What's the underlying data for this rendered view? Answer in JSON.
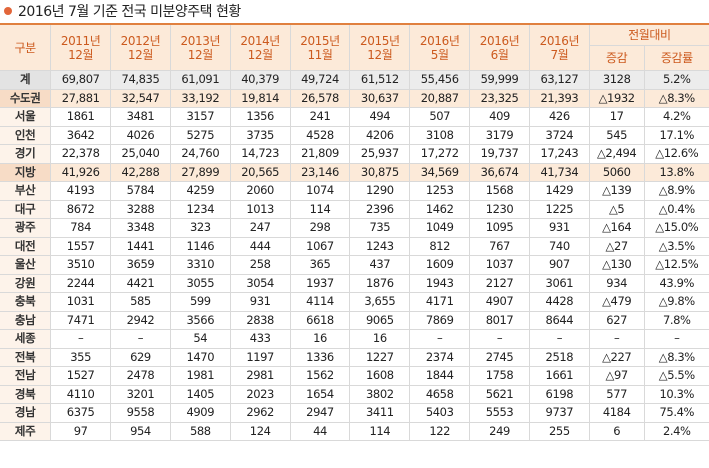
{
  "title": "2016년 7월 기준 전국 미분양주택 현황",
  "header": {
    "region_col": "구분",
    "periods": [
      [
        "2011년",
        "12월"
      ],
      [
        "2012년",
        "12월"
      ],
      [
        "2013년",
        "12월"
      ],
      [
        "2014년",
        "12월"
      ],
      [
        "2015년",
        "11월"
      ],
      [
        "2015년",
        "12월"
      ],
      [
        "2016년",
        "5월"
      ],
      [
        "2016년",
        "6월"
      ],
      [
        "2016년",
        "7월"
      ]
    ],
    "group": "전월대비",
    "sub": [
      "증감",
      "증감률"
    ]
  },
  "rows": [
    {
      "region": "계",
      "style": "sum",
      "values": [
        "69,807",
        "74,835",
        "61,091",
        "40,379",
        "49,724",
        "61,512",
        "55,456",
        "59,999",
        "63,127",
        "3128",
        "5.2%"
      ]
    },
    {
      "region": "수도권",
      "style": "hl",
      "values": [
        "27,881",
        "32,547",
        "33,192",
        "19,814",
        "26,578",
        "30,637",
        "20,887",
        "23,325",
        "21,393",
        "△1932",
        "△8.3%"
      ]
    },
    {
      "region": "서울",
      "style": "",
      "values": [
        "1861",
        "3481",
        "3157",
        "1356",
        "241",
        "494",
        "507",
        "409",
        "426",
        "17",
        "4.2%"
      ]
    },
    {
      "region": "인천",
      "style": "",
      "values": [
        "3642",
        "4026",
        "5275",
        "3735",
        "4528",
        "4206",
        "3108",
        "3179",
        "3724",
        "545",
        "17.1%"
      ]
    },
    {
      "region": "경기",
      "style": "",
      "values": [
        "22,378",
        "25,040",
        "24,760",
        "14,723",
        "21,809",
        "25,937",
        "17,272",
        "19,737",
        "17,243",
        "△2,494",
        "△12.6%"
      ]
    },
    {
      "region": "지방",
      "style": "hl",
      "values": [
        "41,926",
        "42,288",
        "27,899",
        "20,565",
        "23,146",
        "30,875",
        "34,569",
        "36,674",
        "41,734",
        "5060",
        "13.8%"
      ]
    },
    {
      "region": "부산",
      "style": "",
      "values": [
        "4193",
        "5784",
        "4259",
        "2060",
        "1074",
        "1290",
        "1253",
        "1568",
        "1429",
        "△139",
        "△8.9%"
      ]
    },
    {
      "region": "대구",
      "style": "",
      "values": [
        "8672",
        "3288",
        "1234",
        "1013",
        "114",
        "2396",
        "1462",
        "1230",
        "1225",
        "△5",
        "△0.4%"
      ]
    },
    {
      "region": "광주",
      "style": "",
      "values": [
        "784",
        "3348",
        "323",
        "247",
        "298",
        "735",
        "1049",
        "1095",
        "931",
        "△164",
        "△15.0%"
      ]
    },
    {
      "region": "대전",
      "style": "",
      "values": [
        "1557",
        "1441",
        "1146",
        "444",
        "1067",
        "1243",
        "812",
        "767",
        "740",
        "△27",
        "△3.5%"
      ]
    },
    {
      "region": "울산",
      "style": "",
      "values": [
        "3510",
        "3659",
        "3310",
        "258",
        "365",
        "437",
        "1609",
        "1037",
        "907",
        "△130",
        "△12.5%"
      ]
    },
    {
      "region": "강원",
      "style": "",
      "values": [
        "2244",
        "4421",
        "3055",
        "3054",
        "1937",
        "1876",
        "1943",
        "2127",
        "3061",
        "934",
        "43.9%"
      ]
    },
    {
      "region": "충북",
      "style": "",
      "values": [
        "1031",
        "585",
        "599",
        "931",
        "4114",
        "3,655",
        "4171",
        "4907",
        "4428",
        "△479",
        "△9.8%"
      ]
    },
    {
      "region": "충남",
      "style": "",
      "values": [
        "7471",
        "2942",
        "3566",
        "2838",
        "6618",
        "9065",
        "7869",
        "8017",
        "8644",
        "627",
        "7.8%"
      ]
    },
    {
      "region": "세종",
      "style": "",
      "values": [
        "–",
        "–",
        "54",
        "433",
        "16",
        "16",
        "–",
        "–",
        "–",
        "–",
        "–"
      ]
    },
    {
      "region": "전북",
      "style": "",
      "values": [
        "355",
        "629",
        "1470",
        "1197",
        "1336",
        "1227",
        "2374",
        "2745",
        "2518",
        "△227",
        "△8.3%"
      ]
    },
    {
      "region": "전남",
      "style": "",
      "values": [
        "1527",
        "2478",
        "1981",
        "2981",
        "1562",
        "1608",
        "1844",
        "1758",
        "1661",
        "△97",
        "△5.5%"
      ]
    },
    {
      "region": "경북",
      "style": "",
      "values": [
        "4110",
        "3201",
        "1405",
        "2023",
        "1654",
        "3802",
        "4658",
        "5621",
        "6198",
        "577",
        "10.3%"
      ]
    },
    {
      "region": "경남",
      "style": "",
      "values": [
        "6375",
        "9558",
        "4909",
        "2962",
        "2947",
        "3411",
        "5403",
        "5553",
        "9737",
        "4184",
        "75.4%"
      ]
    },
    {
      "region": "제주",
      "style": "",
      "values": [
        "97",
        "954",
        "588",
        "124",
        "44",
        "114",
        "122",
        "249",
        "255",
        "6",
        "2.4%"
      ]
    }
  ]
}
